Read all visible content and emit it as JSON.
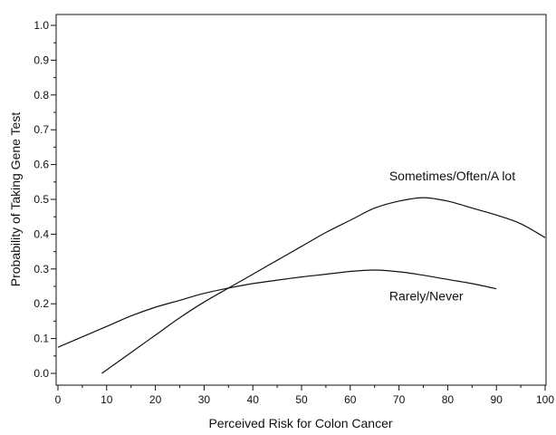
{
  "chart_data": {
    "type": "line",
    "xlabel": "Perceived Risk for Colon Cancer",
    "ylabel": "Probability of Taking Gene Test",
    "xlim": [
      0,
      100
    ],
    "ylim": [
      0,
      1.0
    ],
    "x_ticks": [
      0,
      10,
      20,
      30,
      40,
      50,
      60,
      70,
      80,
      90,
      100
    ],
    "x_tick_labels": [
      "0",
      "10",
      "20",
      "30",
      "40",
      "50",
      "60",
      "70",
      "80",
      "90",
      "100"
    ],
    "y_ticks": [
      0,
      0.1,
      0.2,
      0.3,
      0.4,
      0.5,
      0.6,
      0.7,
      0.8,
      0.9,
      1.0
    ],
    "y_tick_labels": [
      "0.0",
      "0.1",
      "0.2",
      "0.3",
      "0.4",
      "0.5",
      "0.6",
      "0.7",
      "0.8",
      "0.9",
      "1.0"
    ],
    "grid": false,
    "series": [
      {
        "name": "Sometimes/Often/A lot",
        "color": "#111111",
        "x": [
          9,
          15,
          20,
          25,
          30,
          35,
          40,
          45,
          50,
          55,
          60,
          65,
          70,
          75,
          80,
          85,
          90,
          95,
          100
        ],
        "y": [
          0.0,
          0.06,
          0.11,
          0.16,
          0.205,
          0.245,
          0.285,
          0.325,
          0.365,
          0.405,
          0.44,
          0.475,
          0.495,
          0.505,
          0.495,
          0.475,
          0.455,
          0.43,
          0.39
        ]
      },
      {
        "name": "Rarely/Never",
        "color": "#111111",
        "x": [
          0,
          5,
          10,
          15,
          20,
          25,
          30,
          35,
          40,
          45,
          50,
          55,
          60,
          65,
          70,
          75,
          80,
          85,
          90
        ],
        "y": [
          0.075,
          0.105,
          0.135,
          0.165,
          0.19,
          0.21,
          0.23,
          0.245,
          0.258,
          0.268,
          0.277,
          0.285,
          0.293,
          0.297,
          0.292,
          0.282,
          0.27,
          0.258,
          0.243
        ]
      }
    ],
    "annotations": [
      {
        "text": "Sometimes/Often/A lot",
        "series": 0,
        "x": 68,
        "y": 0.555
      },
      {
        "text": "Rarely/Never",
        "series": 1,
        "x": 68,
        "y": 0.21
      }
    ]
  }
}
